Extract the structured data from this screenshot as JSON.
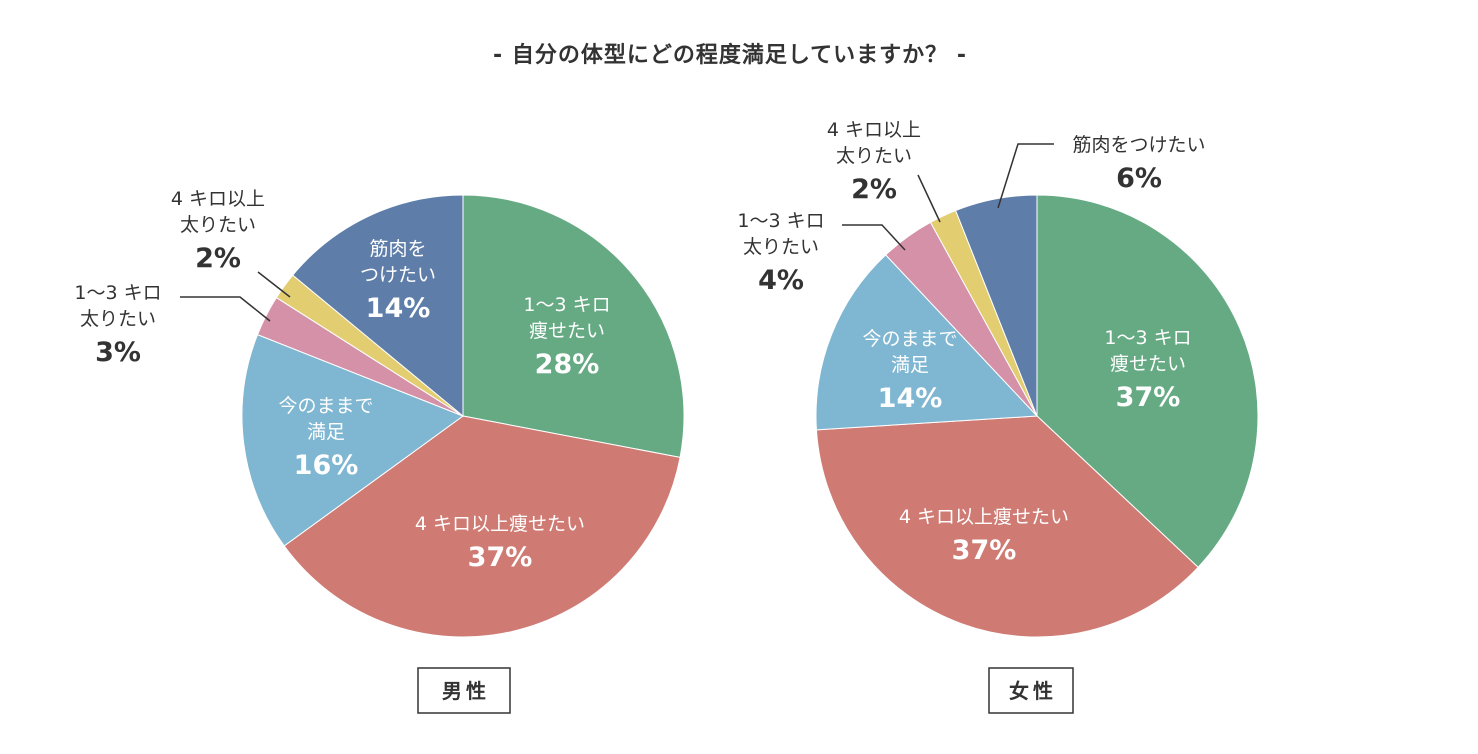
{
  "chart_data": {
    "type": "pie",
    "title": "- 自分の体型にどの程度満足していますか？ -",
    "charts": [
      {
        "name": "男性",
        "slices": [
          {
            "label": [
              "1〜3 キロ",
              "痩せたい"
            ],
            "value": 28,
            "pct_text": "28%",
            "color": "#66aa84",
            "label_pos": "inside"
          },
          {
            "label": [
              "4 キロ以上痩せたい"
            ],
            "value": 37,
            "pct_text": "37%",
            "color": "#cf7b74",
            "label_pos": "inside"
          },
          {
            "label": [
              "今のままで",
              "満足"
            ],
            "value": 16,
            "pct_text": "16%",
            "color": "#7fb6d1",
            "label_pos": "inside"
          },
          {
            "label": [
              "1〜3 キロ",
              "太りたい"
            ],
            "value": 3,
            "pct_text": "3%",
            "color": "#d491a8",
            "label_pos": "outside"
          },
          {
            "label": [
              "4 キロ以上",
              "太りたい"
            ],
            "value": 2,
            "pct_text": "2%",
            "color": "#e2cd70",
            "label_pos": "outside"
          },
          {
            "label": [
              "筋肉を",
              "つけたい"
            ],
            "value": 14,
            "pct_text": "14%",
            "color": "#5e7ea9",
            "label_pos": "inside"
          }
        ]
      },
      {
        "name": "女性",
        "slices": [
          {
            "label": [
              "1〜3 キロ",
              "痩せたい"
            ],
            "value": 37,
            "pct_text": "37%",
            "color": "#66aa84",
            "label_pos": "inside"
          },
          {
            "label": [
              "4 キロ以上痩せたい"
            ],
            "value": 37,
            "pct_text": "37%",
            "color": "#cf7b74",
            "label_pos": "inside"
          },
          {
            "label": [
              "今のままで",
              "満足"
            ],
            "value": 14,
            "pct_text": "14%",
            "color": "#7fb6d1",
            "label_pos": "inside"
          },
          {
            "label": [
              "1〜3 キロ",
              "太りたい"
            ],
            "value": 4,
            "pct_text": "4%",
            "color": "#d491a8",
            "label_pos": "outside"
          },
          {
            "label": [
              "4 キロ以上",
              "太りたい"
            ],
            "value": 2,
            "pct_text": "2%",
            "color": "#e2cd70",
            "label_pos": "outside"
          },
          {
            "label": [
              "筋肉をつけたい"
            ],
            "value": 6,
            "pct_text": "6%",
            "color": "#5e7ea9",
            "label_pos": "outside"
          }
        ]
      }
    ]
  }
}
